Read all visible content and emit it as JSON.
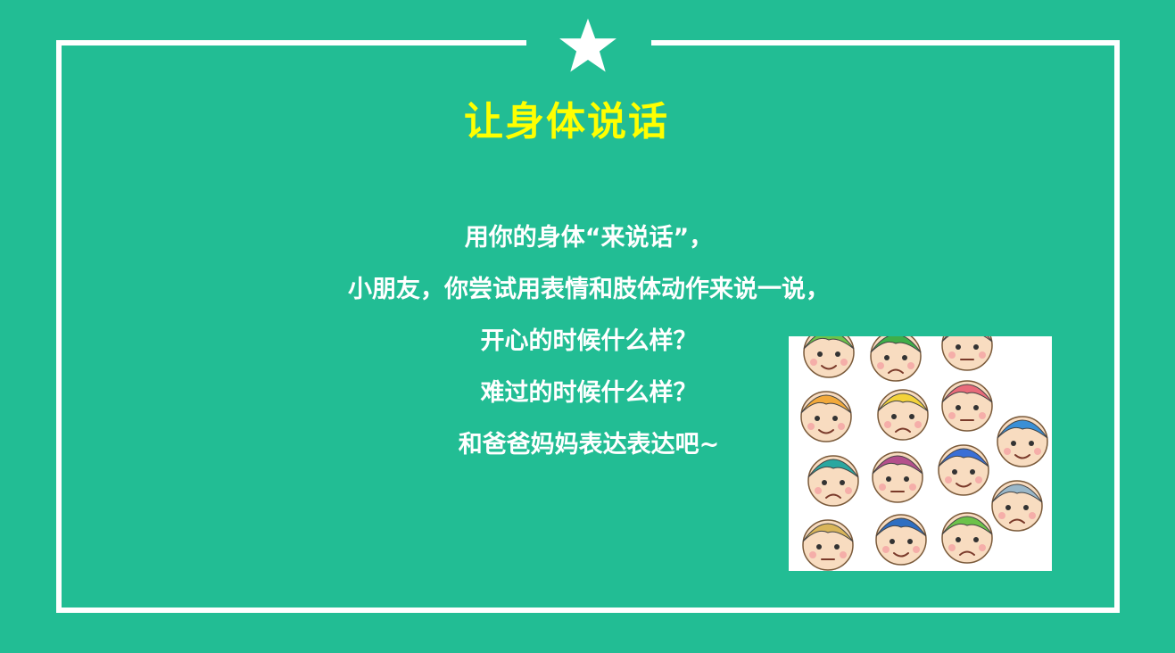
{
  "slide": {
    "title": "让身体说话",
    "lines": [
      "用你的身体“来说话”，",
      "小朋友，你尝试用表情和肢体动作来说一说，",
      "开心的时候什么样？",
      "难过的时候什么样？",
      "和爸爸妈妈表达表达吧~"
    ]
  },
  "theme": {
    "background": "#22bd94",
    "frame": "#ffffff",
    "title_color": "#ffff00",
    "text_color": "#ffffff"
  },
  "illustration": {
    "icon": "cartoon-faces-icon"
  }
}
